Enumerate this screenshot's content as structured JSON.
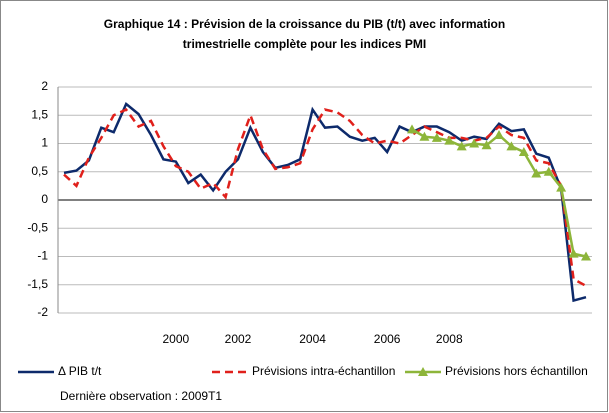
{
  "chart_data": {
    "type": "line",
    "title": "Graphique 14 : Prévision de la croissance du PIB (t/t) avec information trimestrielle complète pour les indices PMI",
    "categories": [
      null,
      null,
      null,
      null,
      null,
      null,
      null,
      null,
      null,
      "2000",
      null,
      null,
      null,
      null,
      "2002",
      null,
      null,
      null,
      null,
      null,
      "2004",
      null,
      null,
      null,
      null,
      null,
      "2006",
      null,
      null,
      null,
      null,
      "2008",
      null,
      null,
      null,
      null,
      null,
      null,
      null,
      null,
      null,
      null,
      null
    ],
    "series": [
      {
        "name": "Δ PIB t/t",
        "color": "#0d2a6b",
        "style": "solid",
        "values": [
          0.48,
          0.52,
          0.7,
          1.28,
          1.2,
          1.7,
          1.52,
          1.15,
          0.72,
          0.68,
          0.3,
          0.45,
          0.17,
          0.5,
          0.72,
          1.28,
          0.85,
          0.57,
          0.62,
          0.72,
          1.6,
          1.28,
          1.3,
          1.12,
          1.05,
          1.1,
          0.85,
          1.3,
          1.2,
          1.3,
          1.3,
          1.2,
          1.05,
          1.12,
          1.08,
          1.35,
          1.22,
          1.25,
          0.82,
          0.75,
          0.2,
          -1.78,
          -1.72
        ]
      },
      {
        "name": "Prévisions intra-échantillon",
        "color": "#e0201b",
        "style": "dashed",
        "values": [
          0.45,
          0.25,
          0.75,
          1.1,
          1.5,
          1.6,
          1.3,
          1.4,
          0.95,
          0.6,
          0.5,
          0.2,
          0.3,
          0.05,
          0.9,
          1.5,
          0.9,
          0.55,
          0.58,
          0.65,
          1.25,
          1.6,
          1.55,
          1.4,
          1.15,
          1.0,
          1.05,
          1.0,
          1.15,
          1.3,
          1.2,
          1.1,
          1.1,
          1.05,
          1.1,
          1.3,
          1.15,
          1.1,
          0.7,
          0.65,
          0.25,
          -1.4,
          -1.52
        ]
      },
      {
        "name": "Prévisions hors échantillon",
        "color": "#8db53a",
        "style": "triangles",
        "values": [
          null,
          null,
          null,
          null,
          null,
          null,
          null,
          null,
          null,
          null,
          null,
          null,
          null,
          null,
          null,
          null,
          null,
          null,
          null,
          null,
          null,
          null,
          null,
          null,
          null,
          null,
          null,
          null,
          1.25,
          1.12,
          1.1,
          1.05,
          0.95,
          1.0,
          0.97,
          1.15,
          0.95,
          0.85,
          0.47,
          0.5,
          0.22,
          -0.95,
          -1.0
        ]
      }
    ],
    "ylim": [
      -2,
      2
    ],
    "yticks": [
      -2,
      {
        "value": -1.5,
        "label": "-1,5"
      },
      -1,
      {
        "value": -0.5,
        "label": "-0,5"
      },
      0,
      {
        "value": 0.5,
        "label": "0,5"
      },
      1,
      {
        "value": 1.5,
        "label": "1,5"
      },
      2
    ],
    "grid": true,
    "legend": "bottom",
    "footnote": "Dernière observation : 2009T1"
  }
}
